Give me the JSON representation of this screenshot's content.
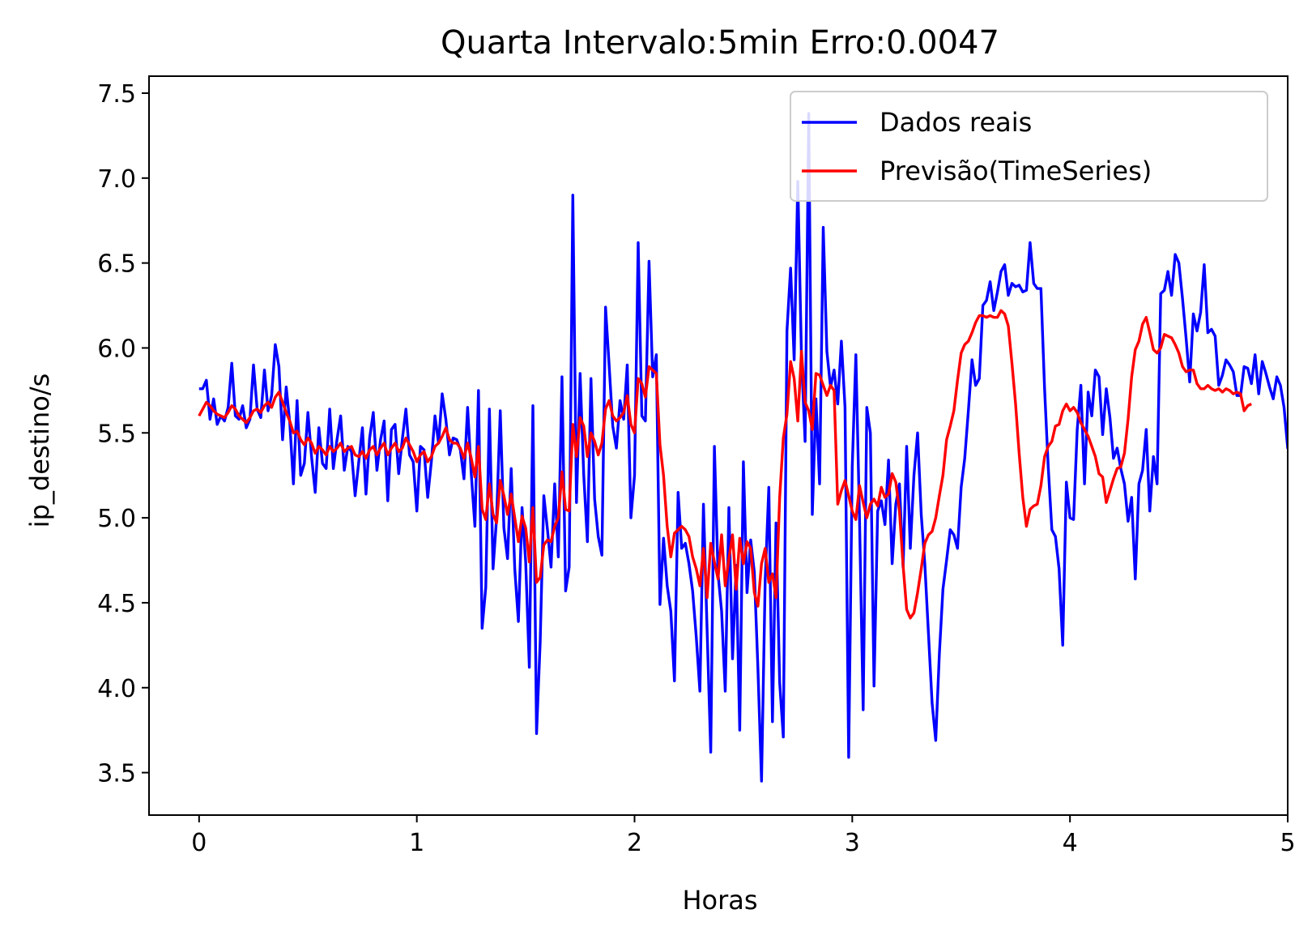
{
  "chart_data": {
    "type": "line",
    "title": "Quarta Intervalo:5min Erro:0.0047",
    "xlabel": "Horas",
    "ylabel": "ip_destino/s",
    "xlim": [
      -0.23,
      5.0
    ],
    "ylim": [
      3.25,
      7.6
    ],
    "xticks": [
      0,
      1,
      2,
      3,
      4,
      5
    ],
    "yticks": [
      3.5,
      4.0,
      4.5,
      5.0,
      5.5,
      6.0,
      6.5,
      7.0,
      7.5
    ],
    "grid": false,
    "legend_position": "upper-right",
    "series": [
      {
        "name": "Dados reais",
        "color": "#0000ff",
        "step": 0.0166667,
        "values": [
          5.76,
          5.76,
          5.81,
          5.58,
          5.7,
          5.55,
          5.6,
          5.57,
          5.65,
          5.91,
          5.6,
          5.58,
          5.66,
          5.53,
          5.58,
          5.9,
          5.64,
          5.59,
          5.87,
          5.63,
          5.72,
          6.02,
          5.89,
          5.46,
          5.77,
          5.56,
          5.2,
          5.69,
          5.25,
          5.32,
          5.62,
          5.36,
          5.15,
          5.53,
          5.32,
          5.29,
          5.64,
          5.29,
          5.46,
          5.6,
          5.28,
          5.42,
          5.39,
          5.13,
          5.33,
          5.53,
          5.14,
          5.47,
          5.62,
          5.28,
          5.46,
          5.57,
          5.1,
          5.52,
          5.55,
          5.26,
          5.46,
          5.64,
          5.37,
          5.33,
          5.04,
          5.42,
          5.4,
          5.12,
          5.33,
          5.6,
          5.44,
          5.73,
          5.58,
          5.37,
          5.47,
          5.46,
          5.4,
          5.23,
          5.65,
          5.26,
          4.95,
          5.75,
          4.35,
          4.59,
          5.64,
          4.7,
          5.0,
          5.63,
          4.94,
          4.76,
          5.29,
          4.7,
          4.39,
          5.06,
          4.74,
          4.12,
          5.66,
          3.73,
          4.27,
          5.13,
          4.93,
          4.71,
          5.2,
          4.77,
          5.83,
          4.57,
          4.71,
          6.9,
          5.09,
          5.85,
          5.25,
          4.86,
          5.82,
          5.11,
          4.89,
          4.78,
          6.24,
          5.9,
          5.54,
          5.41,
          5.69,
          5.58,
          5.9,
          5.0,
          5.25,
          6.62,
          5.6,
          5.57,
          6.51,
          5.83,
          5.96,
          4.49,
          4.88,
          4.6,
          4.45,
          4.04,
          5.15,
          4.82,
          4.85,
          4.73,
          4.57,
          4.3,
          3.98,
          5.08,
          4.34,
          3.62,
          5.42,
          4.67,
          4.45,
          3.98,
          5.06,
          4.17,
          4.72,
          3.75,
          5.33,
          4.56,
          4.87,
          4.68,
          4.12,
          3.45,
          4.63,
          5.18,
          3.8,
          4.97,
          4.03,
          3.71,
          6.1,
          6.47,
          5.93,
          6.98,
          5.95,
          5.45,
          7.38,
          5.02,
          5.7,
          5.2,
          6.71,
          5.98,
          5.77,
          5.87,
          5.67,
          6.04,
          5.65,
          3.59,
          5.3,
          5.96,
          4.99,
          3.87,
          5.65,
          5.5,
          4.01,
          5.04,
          5.1,
          4.96,
          5.34,
          4.73,
          5.08,
          5.2,
          4.71,
          5.42,
          4.82,
          5.25,
          5.5,
          5.02,
          4.73,
          4.32,
          3.91,
          3.69,
          4.2,
          4.58,
          4.75,
          4.93,
          4.9,
          4.82,
          5.18,
          5.35,
          5.63,
          5.93,
          5.78,
          5.82,
          6.25,
          6.28,
          6.39,
          6.22,
          6.33,
          6.45,
          6.49,
          6.31,
          6.38,
          6.36,
          6.37,
          6.33,
          6.34,
          6.62,
          6.38,
          6.35,
          6.35,
          5.76,
          5.3,
          4.93,
          4.89,
          4.7,
          4.25,
          5.21,
          5.0,
          4.99,
          5.52,
          5.78,
          5.2,
          5.74,
          5.6,
          5.87,
          5.83,
          5.49,
          5.76,
          5.59,
          5.35,
          5.41,
          5.29,
          5.2,
          4.98,
          5.12,
          4.64,
          5.2,
          5.28,
          5.52,
          5.04,
          5.36,
          5.2,
          6.32,
          6.34,
          6.45,
          6.31,
          6.55,
          6.5,
          6.29,
          6.06,
          5.8,
          6.2,
          6.1,
          6.21,
          6.49,
          6.09,
          6.11,
          6.07,
          5.78,
          5.84,
          5.93,
          5.9,
          5.86,
          5.72,
          5.72,
          5.89,
          5.88,
          5.79,
          5.96,
          5.73,
          5.92,
          5.85,
          5.77,
          5.7,
          5.83,
          5.78,
          5.65,
          5.41,
          5.8,
          5.75
        ]
      },
      {
        "name": "Previsão(TimeSeries)",
        "color": "#ff0000",
        "step": 0.0166667,
        "values": [
          5.6,
          5.64,
          5.68,
          5.66,
          5.63,
          5.61,
          5.6,
          5.59,
          5.62,
          5.66,
          5.64,
          5.6,
          5.58,
          5.56,
          5.59,
          5.63,
          5.64,
          5.62,
          5.66,
          5.68,
          5.65,
          5.71,
          5.74,
          5.68,
          5.62,
          5.57,
          5.5,
          5.51,
          5.46,
          5.43,
          5.47,
          5.44,
          5.38,
          5.42,
          5.4,
          5.37,
          5.42,
          5.39,
          5.41,
          5.44,
          5.39,
          5.41,
          5.42,
          5.37,
          5.36,
          5.39,
          5.35,
          5.4,
          5.42,
          5.37,
          5.41,
          5.44,
          5.37,
          5.41,
          5.44,
          5.39,
          5.41,
          5.47,
          5.43,
          5.39,
          5.33,
          5.37,
          5.39,
          5.33,
          5.36,
          5.42,
          5.44,
          5.48,
          5.53,
          5.46,
          5.44,
          5.44,
          5.41,
          5.35,
          5.44,
          5.35,
          5.24,
          5.42,
          5.05,
          4.99,
          5.2,
          5.02,
          4.97,
          5.22,
          5.13,
          5.02,
          5.14,
          5.0,
          4.86,
          5.01,
          4.94,
          4.74,
          5.06,
          4.62,
          4.65,
          4.84,
          4.87,
          4.86,
          4.95,
          5.0,
          5.27,
          5.05,
          5.04,
          5.55,
          5.36,
          5.59,
          5.54,
          5.36,
          5.5,
          5.45,
          5.37,
          5.44,
          5.64,
          5.69,
          5.6,
          5.57,
          5.59,
          5.62,
          5.72,
          5.55,
          5.5,
          5.82,
          5.79,
          5.71,
          5.89,
          5.87,
          5.85,
          5.43,
          5.25,
          4.95,
          4.77,
          4.91,
          4.93,
          4.95,
          4.93,
          4.89,
          4.77,
          4.7,
          4.6,
          4.82,
          4.53,
          4.85,
          4.74,
          4.64,
          4.9,
          4.6,
          4.76,
          4.9,
          4.58,
          4.88,
          4.73,
          4.86,
          4.82,
          4.56,
          4.48,
          4.73,
          4.82,
          4.62,
          4.67,
          4.53,
          5.12,
          5.47,
          5.61,
          5.92,
          5.82,
          5.57,
          5.98,
          5.68,
          5.63,
          5.52,
          5.85,
          5.84,
          5.78,
          5.72,
          5.78,
          5.75,
          5.08,
          5.16,
          5.22,
          5.13,
          5.04,
          4.99,
          5.19,
          5.09,
          5.0,
          5.08,
          5.11,
          5.07,
          5.18,
          5.12,
          5.14,
          5.26,
          5.21,
          5.04,
          4.72,
          4.46,
          4.41,
          4.44,
          4.56,
          4.7,
          4.85,
          4.9,
          4.92,
          5.0,
          5.13,
          5.25,
          5.46,
          5.54,
          5.63,
          5.81,
          5.97,
          6.02,
          6.04,
          6.09,
          6.15,
          6.19,
          6.19,
          6.18,
          6.19,
          6.18,
          6.18,
          6.22,
          6.2,
          6.13,
          5.91,
          5.67,
          5.38,
          5.12,
          4.95,
          5.05,
          5.07,
          5.08,
          5.19,
          5.36,
          5.42,
          5.45,
          5.54,
          5.55,
          5.63,
          5.67,
          5.63,
          5.65,
          5.62,
          5.56,
          5.52,
          5.48,
          5.42,
          5.36,
          5.26,
          5.24,
          5.09,
          5.16,
          5.23,
          5.29,
          5.3,
          5.38,
          5.58,
          5.83,
          5.99,
          6.04,
          6.14,
          6.18,
          6.09,
          5.99,
          5.97,
          6.0,
          6.08,
          6.07,
          6.06,
          6.02,
          5.97,
          5.89,
          5.86,
          5.87,
          5.87,
          5.79,
          5.76,
          5.76,
          5.78,
          5.76,
          5.75,
          5.76,
          5.74,
          5.76,
          5.75,
          5.73,
          5.74,
          5.73,
          5.63,
          5.66,
          5.67
        ]
      }
    ]
  }
}
